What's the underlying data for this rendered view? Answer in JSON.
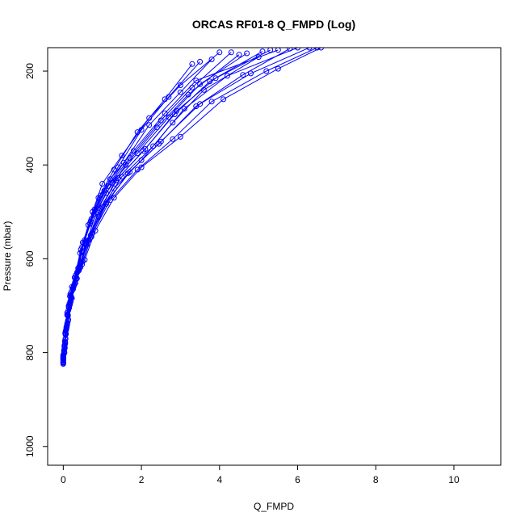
{
  "chart_data": {
    "type": "line",
    "title": "ORCAS RF01-8 Q_FMPD (Log)",
    "xlabel": "Q_FMPD",
    "ylabel": "Pressure (mbar)",
    "xlim": [
      -0.4,
      11.2
    ],
    "ylim": [
      1040,
      150
    ],
    "y_reversed": true,
    "grid": false,
    "legend": "none",
    "x_ticks": [
      0,
      2,
      4,
      6,
      8,
      10
    ],
    "y_ticks": [
      200,
      400,
      600,
      800,
      1000
    ],
    "series_color": "#0000ff",
    "marker": "open-circle",
    "series": [
      {
        "x": [
          0.0,
          0.03,
          0.07,
          0.12,
          0.2,
          0.35,
          0.55,
          0.75,
          1.0,
          1.5,
          2.2,
          3.0,
          4.0
        ],
        "y": [
          822,
          800,
          760,
          720,
          680,
          630,
          560,
          500,
          440,
          380,
          300,
          230,
          160
        ]
      },
      {
        "x": [
          0.0,
          0.02,
          0.06,
          0.1,
          0.18,
          0.3,
          0.45,
          0.7,
          1.1,
          1.6,
          2.4,
          3.2,
          4.5
        ],
        "y": [
          818,
          795,
          755,
          715,
          675,
          640,
          580,
          520,
          460,
          400,
          320,
          250,
          165
        ]
      },
      {
        "x": [
          0.0,
          0.04,
          0.08,
          0.15,
          0.25,
          0.4,
          0.6,
          0.9,
          1.3,
          2.0,
          2.8,
          3.6,
          5.0
        ],
        "y": [
          815,
          790,
          750,
          705,
          665,
          625,
          570,
          510,
          450,
          390,
          310,
          240,
          170
        ]
      },
      {
        "x": [
          0.0,
          0.03,
          0.09,
          0.14,
          0.22,
          0.38,
          0.5,
          0.8,
          1.2,
          1.8,
          2.6,
          3.4,
          5.5
        ],
        "y": [
          812,
          785,
          745,
          700,
          660,
          620,
          565,
          495,
          430,
          370,
          290,
          220,
          155
        ]
      },
      {
        "x": [
          0.0,
          0.05,
          0.1,
          0.16,
          0.28,
          0.42,
          0.65,
          1.0,
          1.5,
          2.3,
          3.1,
          4.2,
          6.0
        ],
        "y": [
          810,
          780,
          740,
          695,
          655,
          615,
          560,
          490,
          425,
          360,
          280,
          210,
          150
        ]
      },
      {
        "x": [
          0.0,
          0.02,
          0.05,
          0.11,
          0.19,
          0.32,
          0.48,
          0.72,
          1.05,
          1.55,
          2.2,
          3.0,
          3.8
        ],
        "y": [
          820,
          798,
          758,
          718,
          678,
          635,
          575,
          515,
          455,
          395,
          315,
          245,
          175
        ]
      },
      {
        "x": [
          0.0,
          0.04,
          0.11,
          0.18,
          0.3,
          0.45,
          0.7,
          1.1,
          1.7,
          2.5,
          3.5,
          4.8,
          6.3
        ],
        "y": [
          808,
          776,
          736,
          690,
          650,
          610,
          550,
          480,
          415,
          350,
          270,
          205,
          150
        ]
      },
      {
        "x": [
          0.0,
          0.03,
          0.07,
          0.13,
          0.21,
          0.36,
          0.52,
          0.78,
          1.15,
          1.7,
          2.5,
          3.3,
          4.3
        ],
        "y": [
          816,
          792,
          752,
          710,
          670,
          628,
          568,
          505,
          445,
          385,
          305,
          235,
          160
        ]
      },
      {
        "x": [
          0.0,
          0.05,
          0.12,
          0.2,
          0.32,
          0.5,
          0.75,
          1.2,
          1.9,
          2.8,
          3.8,
          5.2,
          6.5
        ],
        "y": [
          806,
          772,
          732,
          686,
          645,
          605,
          545,
          475,
          410,
          345,
          265,
          200,
          150
        ]
      },
      {
        "x": [
          0.0,
          0.02,
          0.06,
          0.12,
          0.2,
          0.33,
          0.47,
          0.68,
          0.95,
          1.4,
          2.0,
          2.7,
          3.5
        ],
        "y": [
          824,
          802,
          762,
          722,
          682,
          642,
          585,
          525,
          465,
          405,
          325,
          255,
          180
        ]
      },
      {
        "x": [
          0.0,
          0.04,
          0.09,
          0.17,
          0.27,
          0.44,
          0.62,
          0.95,
          1.4,
          2.1,
          2.9,
          3.9,
          5.3
        ],
        "y": [
          811,
          783,
          743,
          698,
          658,
          618,
          563,
          493,
          428,
          366,
          285,
          215,
          155
        ]
      },
      {
        "x": [
          0.0,
          0.03,
          0.08,
          0.14,
          0.24,
          0.39,
          0.58,
          0.85,
          1.25,
          1.9,
          2.7,
          3.5,
          4.7
        ],
        "y": [
          814,
          788,
          748,
          703,
          663,
          623,
          568,
          500,
          438,
          375,
          298,
          228,
          162
        ]
      },
      {
        "x": [
          0.0,
          0.05,
          0.1,
          0.19,
          0.31,
          0.48,
          0.72,
          1.1,
          1.65,
          2.45,
          3.4,
          4.6,
          5.8
        ],
        "y": [
          809,
          778,
          738,
          692,
          652,
          612,
          553,
          483,
          418,
          355,
          275,
          208,
          152
        ]
      },
      {
        "x": [
          0.0,
          0.02,
          0.05,
          0.1,
          0.17,
          0.29,
          0.43,
          0.64,
          0.9,
          1.3,
          1.9,
          2.6,
          3.3
        ],
        "y": [
          821,
          799,
          760,
          720,
          680,
          640,
          588,
          528,
          470,
          410,
          330,
          260,
          185
        ]
      },
      {
        "x": [
          0.0,
          0.06,
          0.13,
          0.22,
          0.35,
          0.55,
          0.82,
          1.3,
          2.0,
          3.0,
          4.1,
          5.5,
          6.6
        ],
        "y": [
          805,
          770,
          730,
          684,
          642,
          602,
          540,
          470,
          405,
          340,
          260,
          195,
          150
        ]
      },
      {
        "x": [
          0.0,
          0.03,
          0.08,
          0.15,
          0.26,
          0.41,
          0.6,
          0.92,
          1.35,
          2.05,
          2.85,
          3.75,
          5.1
        ],
        "y": [
          813,
          786,
          746,
          701,
          661,
          621,
          566,
          497,
          433,
          370,
          292,
          222,
          158
        ]
      }
    ]
  }
}
